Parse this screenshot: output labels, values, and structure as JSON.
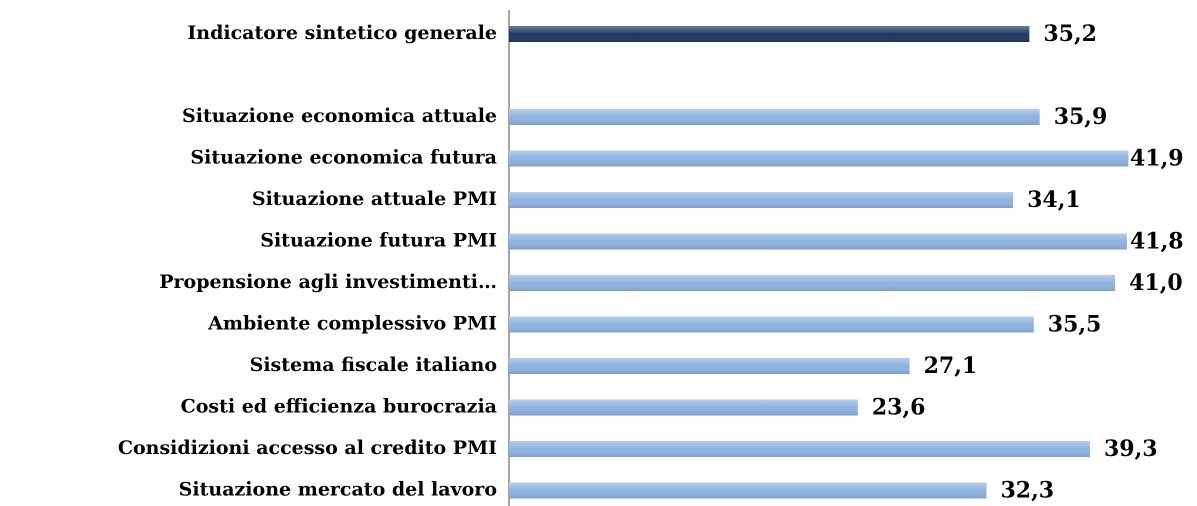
{
  "chart_data": {
    "type": "bar",
    "orientation": "horizontal",
    "categories": [
      "Indicatore sintetico generale",
      null,
      "Situazione economica attuale",
      "Situazione economica futura",
      "Situazione attuale PMI",
      "Situazione futura PMI",
      "Propensione agli investimenti…",
      "Ambiente complessivo PMI",
      "Sistema fiscale italiano",
      "Costi ed efficienza burocrazia",
      "Considizioni accesso al credito PMI",
      "Situazione mercato del lavoro"
    ],
    "values": [
      35.2,
      null,
      35.9,
      41.9,
      34.1,
      41.8,
      41.0,
      35.5,
      27.1,
      23.6,
      39.3,
      32.3
    ],
    "value_labels": [
      "35,2",
      null,
      "35,9",
      "41,9",
      "34,1",
      "41,8",
      "41,0",
      "35,5",
      "27,1",
      "23,6",
      "39,3",
      "32,3"
    ],
    "colors": [
      "#1f3864",
      null,
      "#8db3e2",
      "#8db3e2",
      "#8db3e2",
      "#8db3e2",
      "#8db3e2",
      "#8db3e2",
      "#8db3e2",
      "#8db3e2",
      "#8db3e2",
      "#8db3e2"
    ],
    "xlim": [
      0,
      46
    ]
  }
}
